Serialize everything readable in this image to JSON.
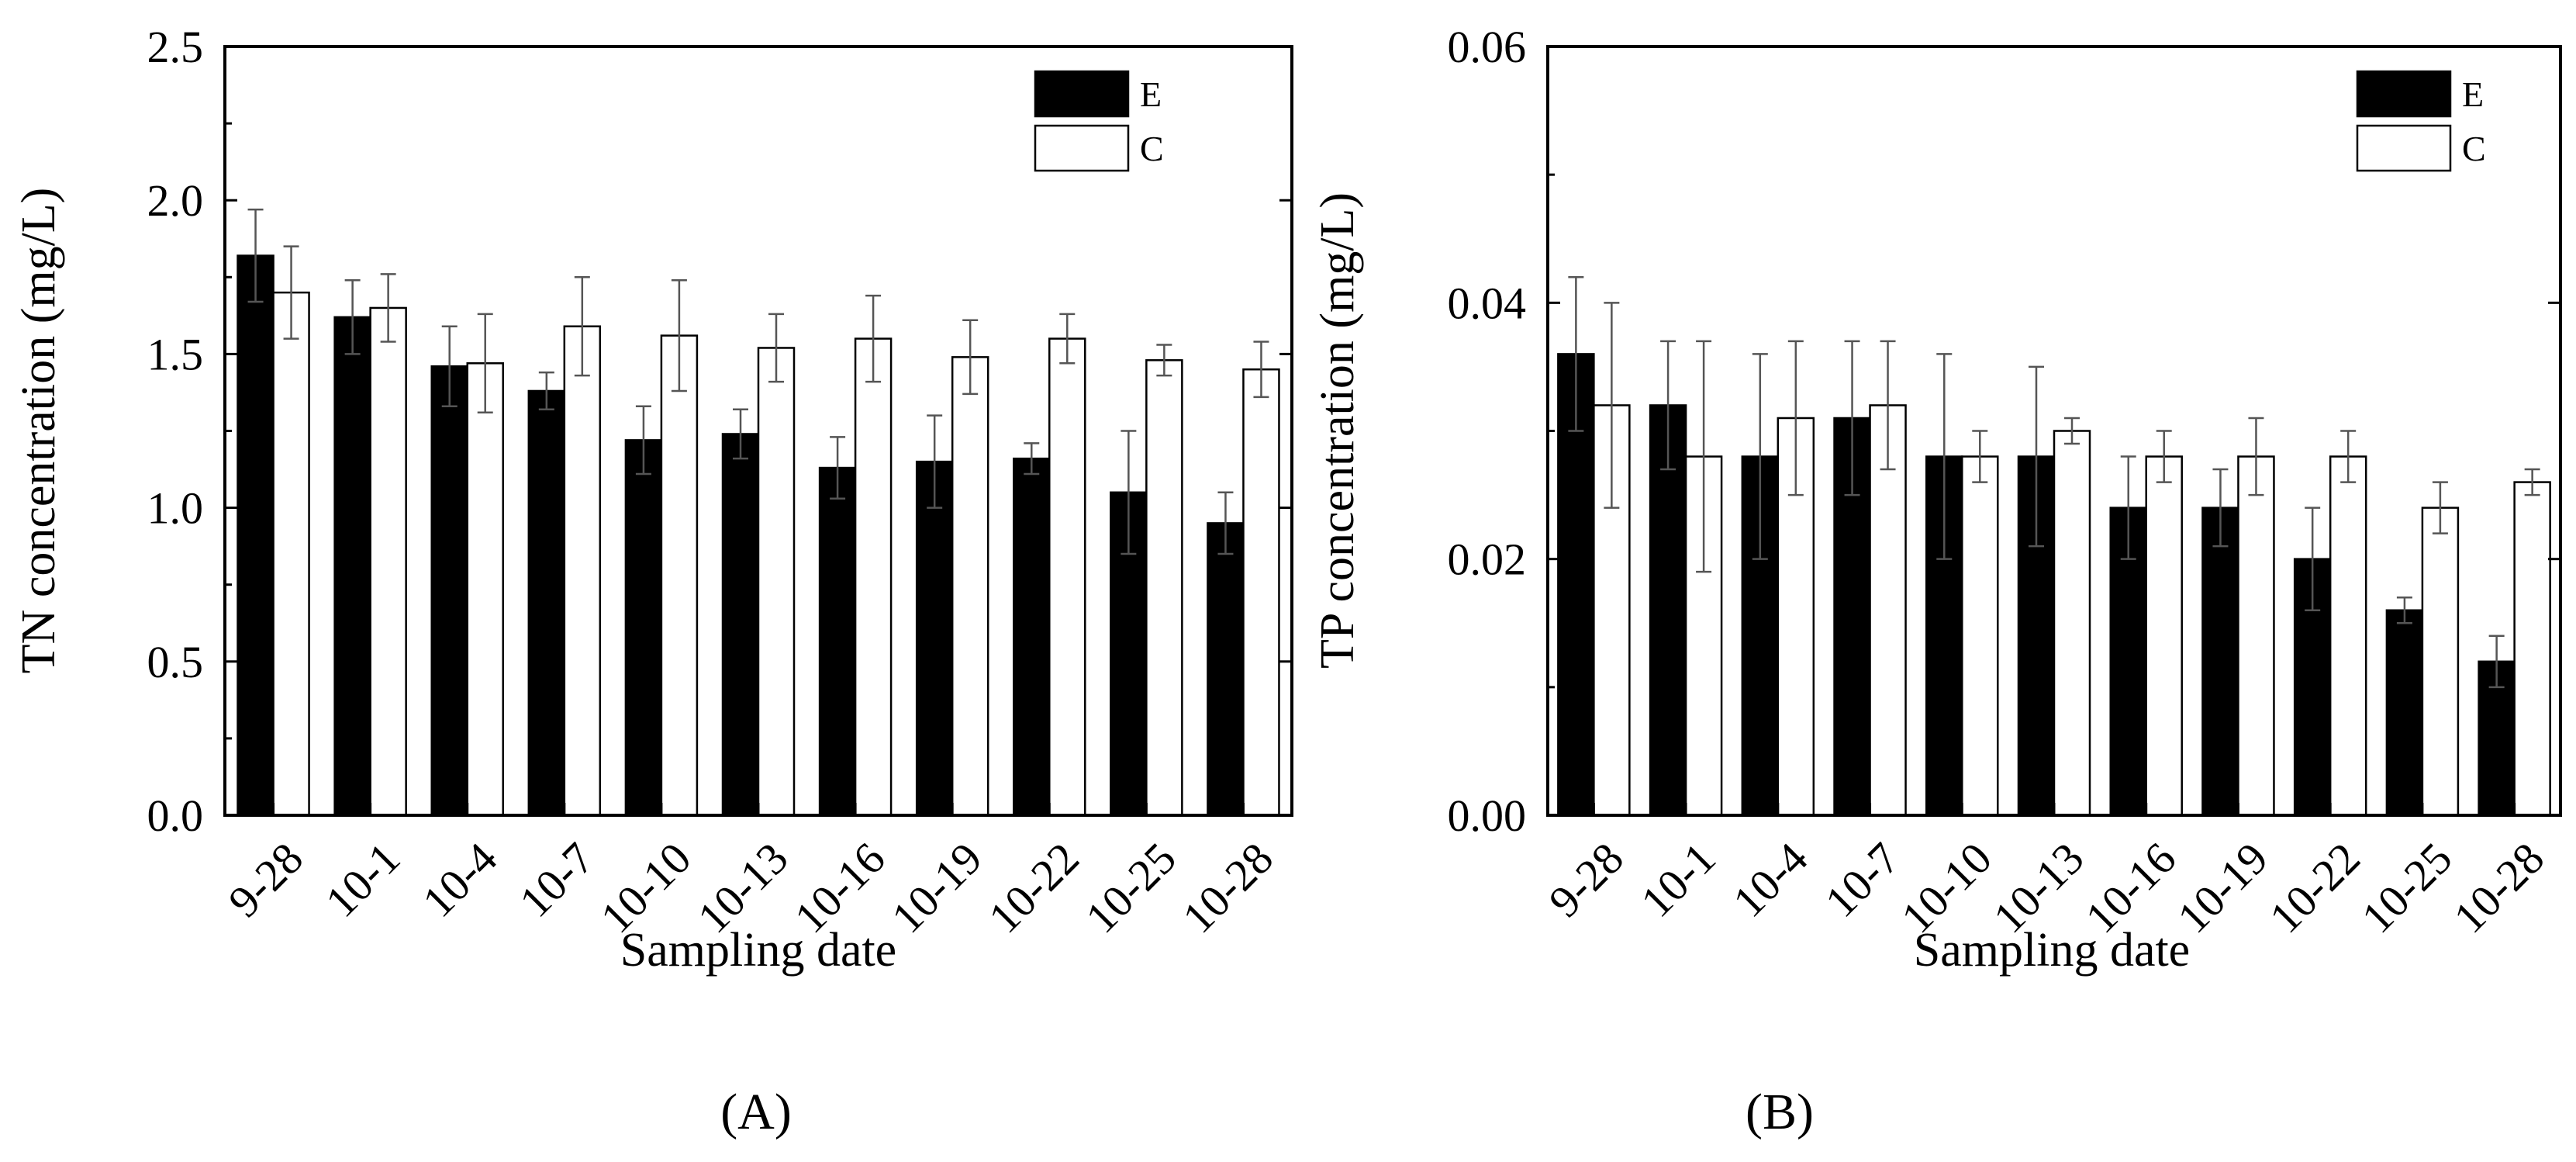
{
  "figure": {
    "panel_labels": [
      "(A)",
      "(B)"
    ]
  },
  "colors": {
    "E": "#000000",
    "C": "#ffffff",
    "axis": "#000000"
  },
  "chart_data": [
    {
      "type": "bar",
      "title": "",
      "panel_label": "(A)",
      "xlabel": "Sampling date",
      "ylabel": "TN concentration (mg/L)",
      "ylim": [
        0,
        2.5
      ],
      "yticks": [
        0.0,
        0.5,
        1.0,
        1.5,
        2.0,
        2.5
      ],
      "ytick_labels": [
        "0.0",
        "0.5",
        "1.0",
        "1.5",
        "2.0",
        "2.5"
      ],
      "legend_position": "top-right",
      "categories": [
        "9-28",
        "10-1",
        "10-4",
        "10-7",
        "10-10",
        "10-13",
        "10-16",
        "10-19",
        "10-22",
        "10-25",
        "10-28"
      ],
      "series": [
        {
          "name": "E",
          "values": [
            1.82,
            1.62,
            1.46,
            1.38,
            1.22,
            1.24,
            1.13,
            1.15,
            1.16,
            1.05,
            0.95
          ],
          "errors": [
            0.15,
            0.12,
            0.13,
            0.06,
            0.11,
            0.08,
            0.1,
            0.15,
            0.05,
            0.2,
            0.1
          ]
        },
        {
          "name": "C",
          "values": [
            1.7,
            1.65,
            1.47,
            1.59,
            1.56,
            1.52,
            1.55,
            1.49,
            1.55,
            1.48,
            1.45
          ],
          "errors": [
            0.15,
            0.11,
            0.16,
            0.16,
            0.18,
            0.11,
            0.14,
            0.12,
            0.08,
            0.05,
            0.09
          ]
        }
      ]
    },
    {
      "type": "bar",
      "title": "",
      "panel_label": "(B)",
      "xlabel": "Sampling date",
      "ylabel": "TP concentration (mg/L)",
      "ylim": [
        0,
        0.06
      ],
      "yticks": [
        0.0,
        0.02,
        0.04,
        0.06
      ],
      "ytick_labels": [
        "0.00",
        "0.02",
        "0.04",
        "0.06"
      ],
      "legend_position": "top-right",
      "categories": [
        "9-28",
        "10-1",
        "10-4",
        "10-7",
        "10-10",
        "10-13",
        "10-16",
        "10-19",
        "10-22",
        "10-25",
        "10-28"
      ],
      "series": [
        {
          "name": "E",
          "values": [
            0.036,
            0.032,
            0.028,
            0.031,
            0.028,
            0.028,
            0.024,
            0.024,
            0.02,
            0.016,
            0.012
          ],
          "errors": [
            0.006,
            0.005,
            0.008,
            0.006,
            0.008,
            0.007,
            0.004,
            0.003,
            0.004,
            0.001,
            0.002
          ]
        },
        {
          "name": "C",
          "values": [
            0.032,
            0.028,
            0.031,
            0.032,
            0.028,
            0.03,
            0.028,
            0.028,
            0.028,
            0.024,
            0.026
          ],
          "errors": [
            0.008,
            0.009,
            0.006,
            0.005,
            0.002,
            0.001,
            0.002,
            0.003,
            0.002,
            0.002,
            0.001
          ]
        }
      ]
    }
  ]
}
